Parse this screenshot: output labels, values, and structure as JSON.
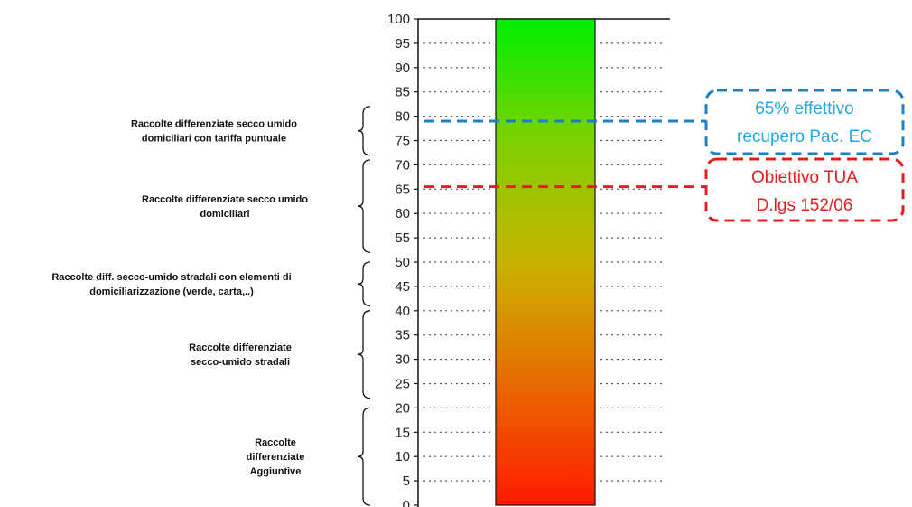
{
  "chart_data": {
    "type": "bar",
    "ylim": [
      0,
      100
    ],
    "y_ticks": [
      0,
      5,
      10,
      15,
      20,
      25,
      30,
      35,
      40,
      45,
      50,
      55,
      60,
      65,
      70,
      75,
      80,
      85,
      90,
      95,
      100
    ],
    "grid": "dotted horizontal lines outside the bar",
    "bar": {
      "from": 0,
      "to": 100,
      "gradient": [
        "#ff1a00",
        "#e86a00",
        "#c8b400",
        "#7ed000",
        "#00ee00"
      ]
    },
    "ranges": [
      {
        "from": 0,
        "to": 20,
        "label_lines": [
          "Raccolte",
          "differenziate",
          "Aggiuntive"
        ]
      },
      {
        "from": 22,
        "to": 40,
        "label_lines": [
          "Raccolte differenziate",
          "secco-umido  stradali"
        ]
      },
      {
        "from": 41,
        "to": 50,
        "label_lines": [
          "Raccolte diff.  secco-umido stradali con elementi di",
          "domiciliarizzazione (verde, carta,..)"
        ]
      },
      {
        "from": 52,
        "to": 71,
        "label_lines": [
          "Raccolte differenziate secco umido",
          "domiciliari"
        ]
      },
      {
        "from": 72,
        "to": 82,
        "label_lines": [
          "Raccolte differenziate secco umido",
          "domiciliari con tariffa puntuale"
        ]
      }
    ],
    "reference_lines": [
      {
        "value": 79,
        "color": "#1f7fc4",
        "text_color": "#29a8e0",
        "label_lines": [
          "65% effettivo",
          "recupero Pac. EC"
        ]
      },
      {
        "value": 65.5,
        "color": "#e02020",
        "text_color": "#e02020",
        "label_lines": [
          "Obiettivo TUA",
          "D.lgs 152/06"
        ]
      }
    ]
  }
}
